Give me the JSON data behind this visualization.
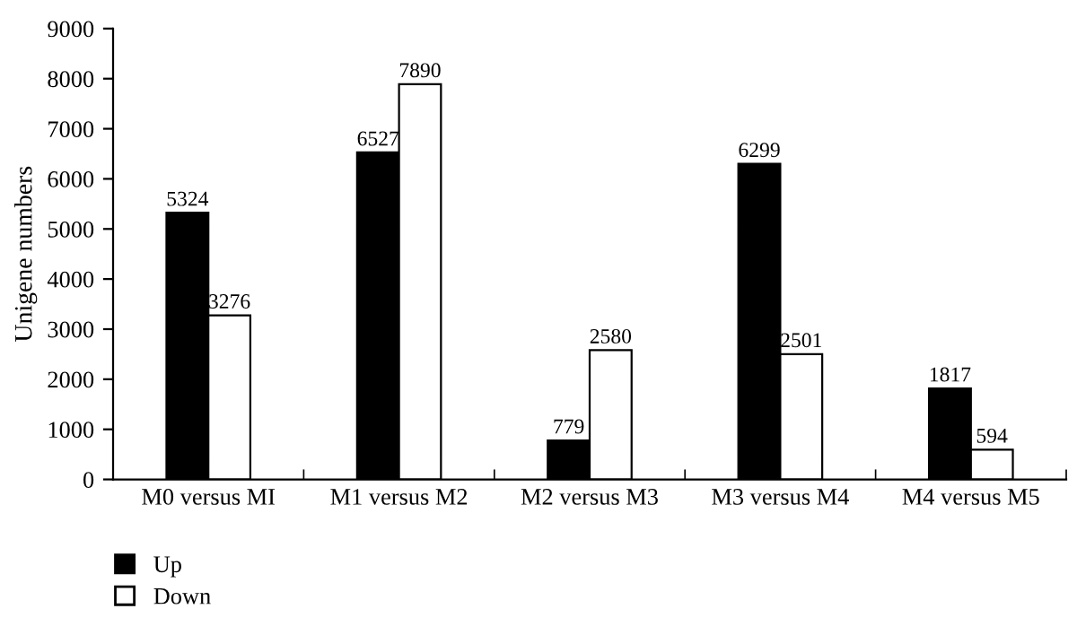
{
  "chart_data": {
    "type": "bar",
    "ylabel": "Unigene numbers",
    "categories": [
      "M0 versus MI",
      "M1 versus M2",
      "M2 versus M3",
      "M3 versus M4",
      "M4 versus M5"
    ],
    "series": [
      {
        "name": "Up",
        "color": "#000000",
        "values": [
          5324,
          6527,
          779,
          6299,
          1817
        ]
      },
      {
        "name": "Down",
        "color": "#ffffff",
        "values": [
          3276,
          7890,
          2580,
          2501,
          594
        ]
      }
    ],
    "ylim": [
      0,
      9000
    ],
    "yticks": [
      0,
      1000,
      2000,
      3000,
      4000,
      5000,
      6000,
      7000,
      8000,
      9000
    ],
    "data_labels": true,
    "grid": false,
    "legend": "bottom left"
  }
}
